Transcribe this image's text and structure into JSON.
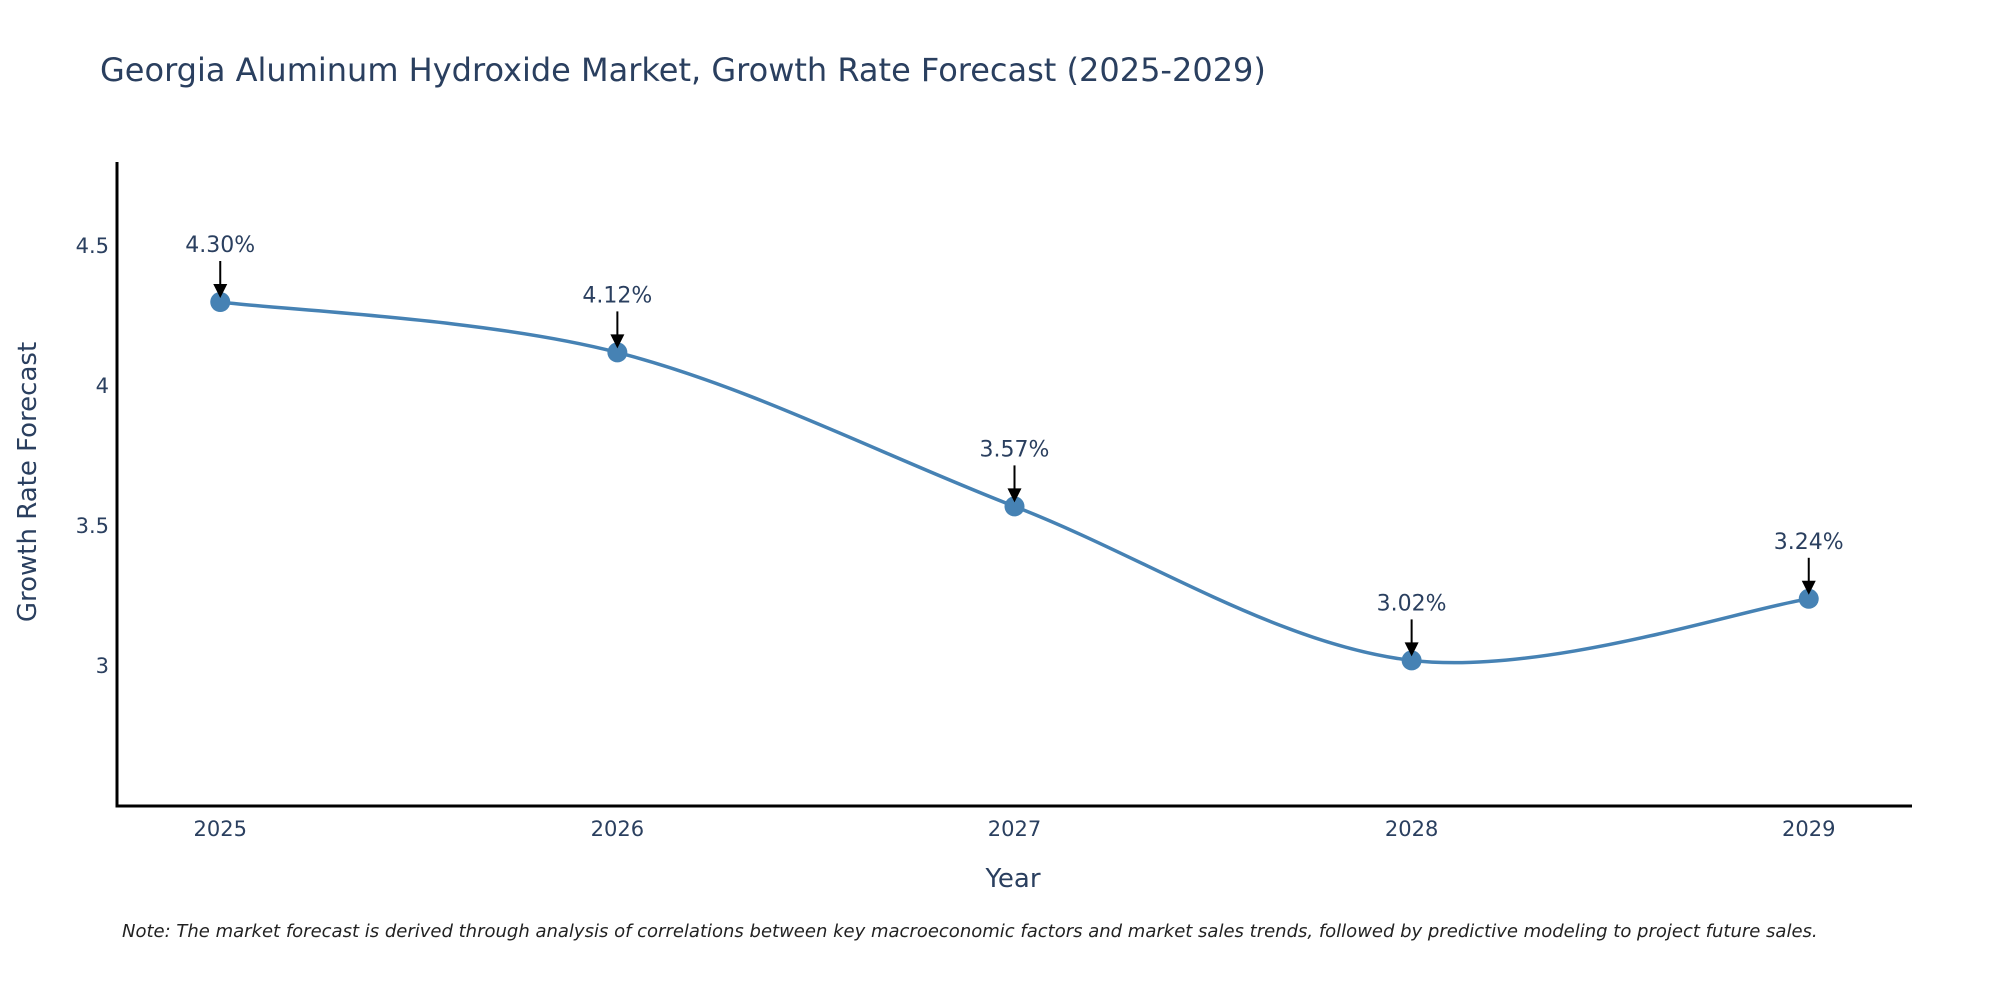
{
  "chart_data": {
    "type": "line",
    "title": "Georgia Aluminum Hydroxide Market, Growth Rate Forecast (2025-2029)",
    "xlabel": "Year",
    "ylabel": "Growth Rate Forecast",
    "x": [
      2025,
      2026,
      2027,
      2028,
      2029
    ],
    "x_tick_labels": [
      "2025",
      "2026",
      "2027",
      "2028",
      "2029"
    ],
    "values": [
      4.3,
      4.12,
      3.57,
      3.02,
      3.24
    ],
    "data_labels": [
      "4.30%",
      "4.12%",
      "3.57%",
      "3.02%",
      "3.24%"
    ],
    "y_ticks": [
      3,
      3.5,
      4,
      4.5
    ],
    "y_tick_labels": [
      "3",
      "3.5",
      "4",
      "4.5"
    ],
    "ylim": [
      2.5,
      4.8
    ],
    "xlim": [
      2024.74,
      2029.26
    ],
    "grid": false,
    "line_shape": "spline",
    "note": "Note: The market forecast is derived through analysis of correlations between key macroeconomic factors and market sales trends, followed by predictive modeling to project future sales."
  },
  "colors": {
    "line": "#4682b4",
    "marker": "#4682b4",
    "axis": "#000000",
    "text": "#2a3f5f",
    "arrow": "#000000"
  }
}
